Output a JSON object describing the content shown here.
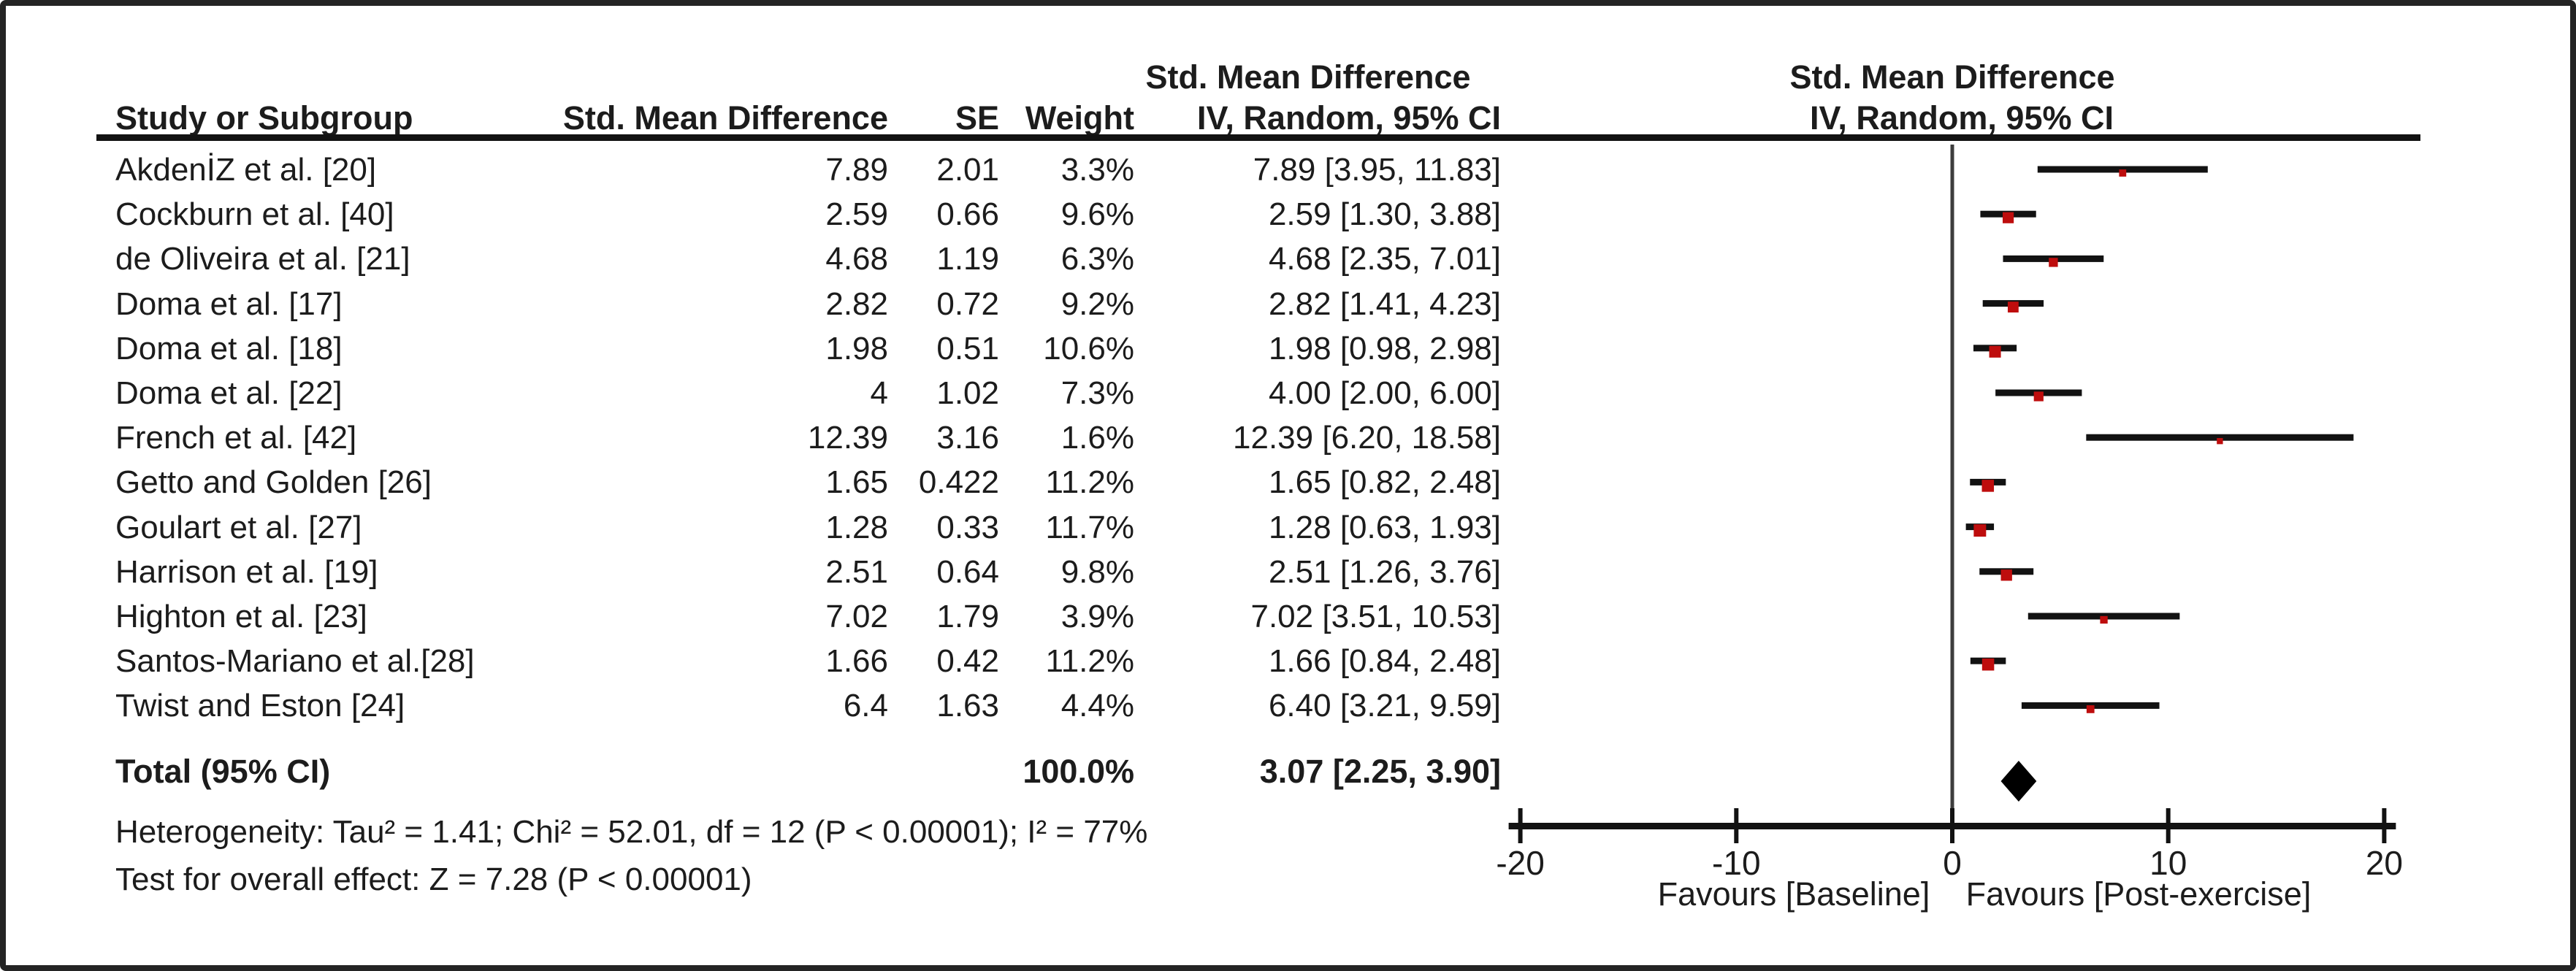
{
  "header": {
    "col1_title": "Std. Mean Difference",
    "col2_title": "Std. Mean Difference",
    "study": "Study or Subgroup",
    "smd": "Std. Mean Difference",
    "se": "SE",
    "weight": "Weight",
    "ci": "IV, Random, 95% CI",
    "ci_plot": "IV, Random, 95% CI"
  },
  "total_row": {
    "label": "Total (95% CI)",
    "weight": "100.0%",
    "ci": "3.07 [2.25, 3.90]"
  },
  "footnotes": {
    "heterogeneity": "Heterogeneity: Tau² = 1.41; Chi² = 52.01, df = 12 (P < 0.00001); I² = 77%",
    "overall_effect": "Test for overall effect: Z = 7.28 (P < 0.00001)"
  },
  "chart_data": {
    "type": "forest",
    "x_axis": {
      "min": -20,
      "max": 20,
      "ticks": [
        -20,
        -10,
        0,
        10,
        20
      ],
      "tick_labels": [
        "-20",
        "-10",
        "0",
        "10",
        "20"
      ],
      "grid": false
    },
    "favours_left": "Favours [Baseline]",
    "favours_right": "Favours [Post-exercise]",
    "effect_label": "IV, Random, 95% CI",
    "studies": [
      {
        "study": "AkdenİZ et al. [20]",
        "smd": "7.89",
        "se": "2.01",
        "weight": "3.3%",
        "ci": "7.89 [3.95, 11.83]",
        "est": 7.89,
        "lo": 3.95,
        "hi": 11.83,
        "w": 3.3
      },
      {
        "study": "Cockburn et al. [40]",
        "smd": "2.59",
        "se": "0.66",
        "weight": "9.6%",
        "ci": "2.59 [1.30, 3.88]",
        "est": 2.59,
        "lo": 1.3,
        "hi": 3.88,
        "w": 9.6
      },
      {
        "study": "de Oliveira et al. [21]",
        "smd": "4.68",
        "se": "1.19",
        "weight": "6.3%",
        "ci": "4.68 [2.35, 7.01]",
        "est": 4.68,
        "lo": 2.35,
        "hi": 7.01,
        "w": 6.3
      },
      {
        "study": "Doma et al. [17]",
        "smd": "2.82",
        "se": "0.72",
        "weight": "9.2%",
        "ci": "2.82 [1.41, 4.23]",
        "est": 2.82,
        "lo": 1.41,
        "hi": 4.23,
        "w": 9.2
      },
      {
        "study": "Doma et al. [18]",
        "smd": "1.98",
        "se": "0.51",
        "weight": "10.6%",
        "ci": "1.98 [0.98, 2.98]",
        "est": 1.98,
        "lo": 0.98,
        "hi": 2.98,
        "w": 10.6
      },
      {
        "study": "Doma et al. [22]",
        "smd": "4",
        "se": "1.02",
        "weight": "7.3%",
        "ci": "4.00 [2.00, 6.00]",
        "est": 4.0,
        "lo": 2.0,
        "hi": 6.0,
        "w": 7.3
      },
      {
        "study": "French et al. [42]",
        "smd": "12.39",
        "se": "3.16",
        "weight": "1.6%",
        "ci": "12.39 [6.20, 18.58]",
        "est": 12.39,
        "lo": 6.2,
        "hi": 18.58,
        "w": 1.6
      },
      {
        "study": "Getto and Golden [26]",
        "smd": "1.65",
        "se": "0.422",
        "weight": "11.2%",
        "ci": "1.65 [0.82, 2.48]",
        "est": 1.65,
        "lo": 0.82,
        "hi": 2.48,
        "w": 11.2
      },
      {
        "study": "Goulart et al. [27]",
        "smd": "1.28",
        "se": "0.33",
        "weight": "11.7%",
        "ci": "1.28 [0.63, 1.93]",
        "est": 1.28,
        "lo": 0.63,
        "hi": 1.93,
        "w": 11.7
      },
      {
        "study": "Harrison et al. [19]",
        "smd": "2.51",
        "se": "0.64",
        "weight": "9.8%",
        "ci": "2.51 [1.26, 3.76]",
        "est": 2.51,
        "lo": 1.26,
        "hi": 3.76,
        "w": 9.8
      },
      {
        "study": "Highton et al. [23]",
        "smd": "7.02",
        "se": "1.79",
        "weight": "3.9%",
        "ci": "7.02 [3.51, 10.53]",
        "est": 7.02,
        "lo": 3.51,
        "hi": 10.53,
        "w": 3.9
      },
      {
        "study": "Santos-Mariano et al.[28]",
        "smd": "1.66",
        "se": "0.42",
        "weight": "11.2%",
        "ci": "1.66 [0.84, 2.48]",
        "est": 1.66,
        "lo": 0.84,
        "hi": 2.48,
        "w": 11.2
      },
      {
        "study": "Twist and Eston [24]",
        "smd": "6.4",
        "se": "1.63",
        "weight": "4.4%",
        "ci": "6.40 [3.21, 9.59]",
        "est": 6.4,
        "lo": 3.21,
        "hi": 9.59,
        "w": 4.4
      }
    ],
    "total": {
      "est": 3.07,
      "lo": 2.25,
      "hi": 3.9
    },
    "marker_color": "#be0d0d",
    "ci_line_color": "#121212",
    "axis_color": "#121212",
    "zero_line_color": "#3d3d3d"
  }
}
